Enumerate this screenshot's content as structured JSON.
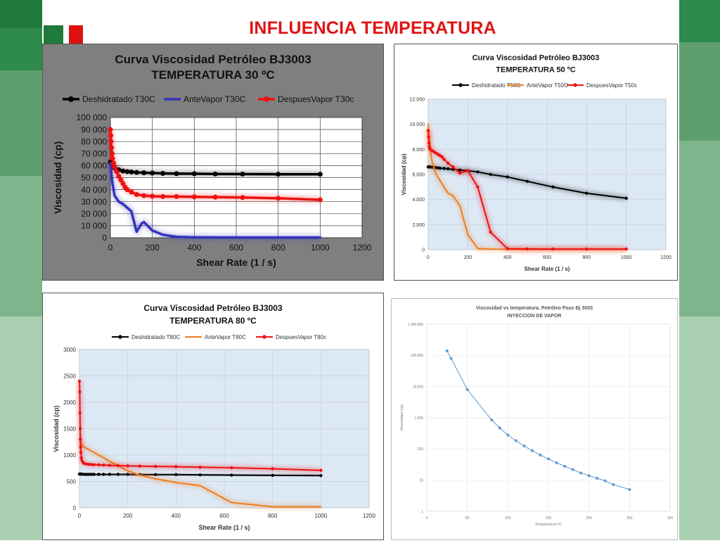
{
  "slide": {
    "title": "INFLUENCIA TEMPERATURA",
    "colors": {
      "title": "#e01414",
      "green_dark": "#1f7a3c",
      "green_mid": "#4e9a63",
      "green_light": "#8cc29a"
    }
  },
  "chart_data": [
    {
      "type": "line",
      "title": "Curva Viscosidad Petróleo BJ3003",
      "subtitle": "TEMPERATURA 30 ºC",
      "xlabel": "Shear Rate  (1 / s)",
      "ylabel": "Viscosidad  (cp)",
      "xlim": [
        0,
        1200
      ],
      "ylim": [
        0,
        100000
      ],
      "xticks": [
        0,
        200,
        400,
        600,
        800,
        1000,
        1200
      ],
      "yticks": [
        0,
        10000,
        20000,
        30000,
        40000,
        50000,
        60000,
        70000,
        80000,
        90000,
        100000
      ],
      "ytick_labels": [
        "0",
        "10 000",
        "20 000",
        "30 000",
        "40 000",
        "50 000",
        "60 000",
        "70 000",
        "80 000",
        "90 000",
        "100 000"
      ],
      "xtick_labels": [
        "0",
        "200",
        "400",
        "600",
        "800",
        "1000",
        "1200"
      ],
      "legend": "top",
      "grid": true,
      "background": "#ffffff",
      "series": [
        {
          "name": "Deshidratado T30C",
          "color": "#000000",
          "markers": true,
          "x": [
            0,
            3,
            6,
            10,
            20,
            40,
            60,
            80,
            100,
            125,
            160,
            200,
            250,
            315,
            400,
            500,
            630,
            800,
            1000
          ],
          "y": [
            63000,
            62000,
            61000,
            60000,
            58000,
            56500,
            55500,
            55000,
            54700,
            54300,
            54000,
            53800,
            53500,
            53300,
            53200,
            53000,
            52900,
            52800,
            52800
          ]
        },
        {
          "name": "AnteVapor T30C",
          "color": "#3333bb",
          "markers": false,
          "x": [
            0,
            10,
            20,
            40,
            60,
            80,
            100,
            125,
            150,
            160,
            200,
            250,
            315,
            400,
            500,
            630,
            800,
            1000
          ],
          "y": [
            62000,
            45000,
            35000,
            30000,
            28000,
            25000,
            22000,
            5000,
            12000,
            13000,
            6000,
            2500,
            800,
            400,
            300,
            200,
            200,
            200
          ]
        },
        {
          "name": "DespuesVapor  T30c",
          "color": "#ee1111",
          "markers": true,
          "x": [
            0,
            2,
            3,
            5,
            8,
            10,
            15,
            20,
            30,
            40,
            50,
            60,
            70,
            80,
            100,
            125,
            160,
            200,
            250,
            315,
            400,
            500,
            630,
            800,
            1000
          ],
          "y": [
            90000,
            85000,
            80000,
            75000,
            70000,
            66000,
            62000,
            59000,
            55000,
            51000,
            48000,
            45000,
            42000,
            40000,
            38000,
            36000,
            35000,
            34500,
            34300,
            34200,
            34000,
            33800,
            33500,
            32800,
            31500
          ]
        }
      ]
    },
    {
      "type": "line",
      "title": "Curva Viscosidad Petróleo BJ3003",
      "subtitle": "TEMPERATURA  50 ºC",
      "xlabel": "Shear Rate  (1 / s)",
      "ylabel": "Viscosidad  (cp)",
      "xlim": [
        0,
        1200
      ],
      "ylim": [
        0,
        12000
      ],
      "xticks": [
        0,
        200,
        400,
        600,
        800,
        1000,
        1200
      ],
      "yticks": [
        0,
        2000,
        4000,
        6000,
        8000,
        10000,
        12000
      ],
      "ytick_labels": [
        "0",
        "2.000",
        "4.000",
        "6.000",
        "8.000",
        "10.000",
        "12.000"
      ],
      "xtick_labels": [
        "0",
        "200",
        "400",
        "600",
        "800",
        "1000",
        "1200"
      ],
      "legend": "top",
      "grid": true,
      "background": "#dde8f5",
      "series": [
        {
          "name": "Deshidratado  T50C",
          "color": "#000000",
          "markers": true,
          "x": [
            0,
            5,
            10,
            20,
            30,
            40,
            50,
            60,
            80,
            100,
            125,
            160,
            200,
            250,
            315,
            400,
            500,
            630,
            800,
            1000
          ],
          "y": [
            6600,
            6600,
            6600,
            6580,
            6560,
            6540,
            6520,
            6500,
            6480,
            6450,
            6400,
            6350,
            6300,
            6200,
            6000,
            5800,
            5450,
            5000,
            4500,
            4100
          ]
        },
        {
          "name": "AnteVapor  T50C",
          "color": "#f07d1e",
          "markers": false,
          "x": [
            0,
            10,
            20,
            40,
            60,
            80,
            100,
            125,
            160,
            200,
            250,
            315,
            400,
            500,
            630,
            800,
            1000
          ],
          "y": [
            10000,
            8000,
            7000,
            6000,
            5500,
            5000,
            4500,
            4300,
            3500,
            1200,
            100,
            50,
            30,
            20,
            20,
            20,
            20
          ]
        },
        {
          "name": "DespuesVapor  T50c",
          "color": "#ee1111",
          "markers": true,
          "x": [
            0,
            2,
            4,
            6,
            8,
            10,
            20,
            30,
            40,
            50,
            60,
            70,
            80,
            100,
            125,
            160,
            200,
            250,
            315,
            400,
            500,
            630,
            800,
            1000
          ],
          "y": [
            9500,
            9000,
            8500,
            8200,
            8100,
            8000,
            7900,
            7800,
            7700,
            7600,
            7500,
            7400,
            7200,
            6900,
            6600,
            6100,
            6300,
            5000,
            1400,
            80,
            60,
            50,
            50,
            50
          ]
        }
      ]
    },
    {
      "type": "line",
      "title": "Curva Viscosidad Petróleo BJ3003",
      "subtitle": "TEMPERATURA  80 ºC",
      "xlabel": "Shear Rate  (1 / s)",
      "ylabel": "Viscosidad  (cp)",
      "xlim": [
        0,
        1200
      ],
      "ylim": [
        0,
        3000
      ],
      "xticks": [
        0,
        200,
        400,
        600,
        800,
        1000,
        1200
      ],
      "yticks": [
        0,
        500,
        1000,
        1500,
        2000,
        2500,
        3000
      ],
      "ytick_labels": [
        "0",
        "500",
        "1000",
        "1500",
        "2000",
        "2500",
        "3000"
      ],
      "xtick_labels": [
        "0",
        "200",
        "400",
        "600",
        "800",
        "1000",
        "1200"
      ],
      "legend": "top",
      "grid": true,
      "background": "#dde8f5",
      "series": [
        {
          "name": "Deshidratado  T80C",
          "color": "#000000",
          "markers": true,
          "x": [
            0,
            3,
            6,
            10,
            20,
            30,
            40,
            50,
            60,
            80,
            100,
            125,
            160,
            200,
            250,
            315,
            400,
            500,
            630,
            800,
            1000
          ],
          "y": [
            640,
            640,
            640,
            640,
            635,
            635,
            635,
            635,
            635,
            635,
            635,
            635,
            635,
            635,
            630,
            630,
            630,
            625,
            620,
            615,
            610
          ]
        },
        {
          "name": "AnteVapor  T80C",
          "color": "#f07d1e",
          "markers": false,
          "x": [
            0,
            5,
            10,
            20,
            40,
            60,
            80,
            100,
            125,
            160,
            200,
            250,
            315,
            400,
            500,
            630,
            800,
            1000
          ],
          "y": [
            1300,
            1250,
            1200,
            1150,
            1100,
            1050,
            1000,
            950,
            880,
            800,
            700,
            620,
            550,
            480,
            420,
            100,
            20,
            20
          ]
        },
        {
          "name": "DespuesVapor  T80c",
          "color": "#ee1111",
          "markers": true,
          "x": [
            0,
            1,
            2,
            3,
            4,
            5,
            6,
            8,
            10,
            15,
            20,
            30,
            40,
            50,
            60,
            80,
            100,
            125,
            160,
            200,
            250,
            315,
            400,
            500,
            630,
            800,
            1000
          ],
          "y": [
            2400,
            2200,
            1800,
            1500,
            1300,
            1150,
            1050,
            950,
            900,
            860,
            840,
            830,
            825,
            820,
            818,
            815,
            810,
            805,
            800,
            795,
            790,
            785,
            780,
            770,
            760,
            740,
            710
          ]
        }
      ]
    },
    {
      "type": "line",
      "title": "Viscosidad vs temperatura. Petróleo Pozo Bj 3003",
      "subtitle": "INYECCION DE VAPOR",
      "xlabel": "Temperatura ºC",
      "ylabel": "Viscosidad (cp)",
      "xlim": [
        0,
        300
      ],
      "ylim": [
        1,
        1000000
      ],
      "yscale": "log",
      "xticks": [
        0,
        50,
        100,
        150,
        200,
        250,
        300
      ],
      "yticks": [
        1,
        10,
        100,
        1000,
        10000,
        100000,
        1000000
      ],
      "ytick_labels": [
        "1",
        "10",
        "100",
        "1.000",
        "10.000",
        "100.000",
        "1.000.000"
      ],
      "xtick_labels": [
        "0",
        "50",
        "100",
        "150",
        "200",
        "250",
        "300"
      ],
      "grid": true,
      "background": "#ffffff",
      "series": [
        {
          "name": "",
          "color": "#5b9bd5",
          "markers": true,
          "x": [
            25,
            30,
            50,
            80,
            90,
            100,
            110,
            120,
            130,
            140,
            150,
            160,
            170,
            180,
            190,
            200,
            210,
            220,
            230,
            250
          ],
          "y": [
            140000,
            80000,
            8000,
            850,
            470,
            280,
            185,
            125,
            88,
            64,
            48,
            36,
            28,
            22,
            17,
            14,
            11.5,
            9.5,
            7.2,
            5
          ]
        }
      ]
    }
  ]
}
